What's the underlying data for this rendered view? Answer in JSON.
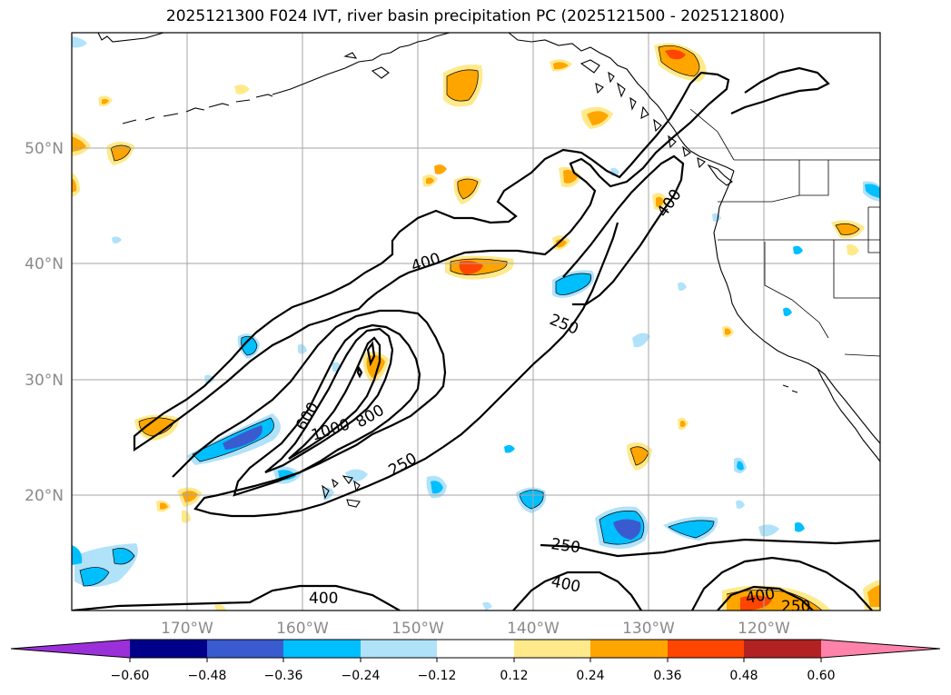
{
  "title": "2025121300 F024 IVT, river basin precipitation PC (2025121500 - 2025121800)",
  "lat_labels": [
    "50°N",
    "40°N",
    "30°N",
    "20°N"
  ],
  "lon_labels": [
    "170°W",
    "160°W",
    "150°W",
    "140°W",
    "130°W",
    "120°W"
  ],
  "ivt_contour_labels": [
    "400",
    "250",
    "400",
    "600",
    "1000",
    "800",
    "250",
    "250",
    "400",
    "400",
    "400",
    "250"
  ],
  "colorbar": {
    "tick_labels": [
      "−0.60",
      "−0.48",
      "−0.36",
      "−0.24",
      "−0.12",
      "0.12",
      "0.24",
      "0.36",
      "0.48",
      "0.60"
    ],
    "colors": [
      "#9b30d9",
      "#00008b",
      "#3a5bd0",
      "#00bfff",
      "#b0e2fa",
      "#ffffff",
      "#ffe98a",
      "#ffa500",
      "#ff4500",
      "#b22222",
      "#ff82aa"
    ]
  },
  "colors": {
    "neg_light": "#b0e2fa",
    "neg_mid": "#00bfff",
    "neg_strong": "#3a5bd0",
    "neg_max": "#00008b",
    "pos_light": "#ffe98a",
    "pos_mid": "#ffa500",
    "pos_strong": "#ff4500"
  }
}
